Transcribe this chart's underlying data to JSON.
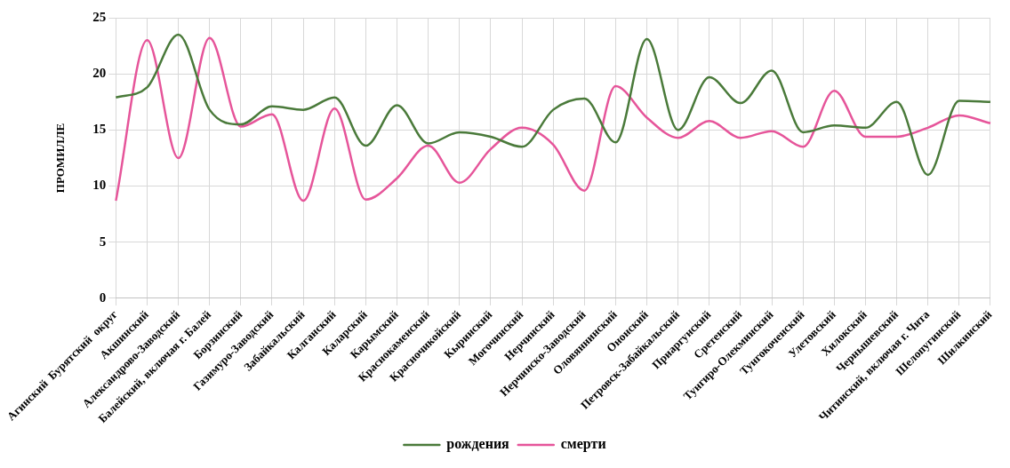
{
  "chart_data": {
    "type": "line",
    "ylabel": "ПРОМИЛЛЕ",
    "categories": [
      "Агинский  Бурятский  округ",
      "Акшинский",
      "Александрово-Заводский",
      "Балейский, включая г. Балей",
      "Борзинский",
      "Газимуро-Заводский",
      "Забайкальский",
      "Калганский",
      "Каларский",
      "Карымский",
      "Краснокаменский",
      "Красночикойский",
      "Кыринский",
      "Могочинский",
      "Нерчинский",
      "Нерчинско-Заводский",
      "Оловяннинский",
      "Ононский",
      "Петровск-Забайкальский",
      "Приаргунский",
      "Сретенский",
      "Тунгиро-Олекминский",
      "Тунгокоченский",
      "Улетовский",
      "Хилокский",
      "Чернышевский",
      "Читинский, включая г. Чита",
      "Шелопугинский",
      "Шилкинский"
    ],
    "series": [
      {
        "name": "рождения",
        "color": "#4a7a3a",
        "values": [
          17.9,
          18.8,
          23.5,
          16.8,
          15.5,
          17.1,
          16.8,
          17.9,
          13.6,
          17.2,
          13.8,
          14.8,
          14.4,
          13.5,
          16.8,
          17.8,
          13.9,
          23.1,
          15.0,
          19.7,
          17.4,
          20.3,
          14.8,
          15.4,
          15.2,
          17.5,
          11.0,
          17.6,
          17.5
        ]
      },
      {
        "name": "смерти",
        "color": "#e6559a",
        "values": [
          8.7,
          23.0,
          12.5,
          23.2,
          15.3,
          16.4,
          8.7,
          16.9,
          8.8,
          10.7,
          13.6,
          10.3,
          13.3,
          15.2,
          13.7,
          9.6,
          18.9,
          16.1,
          14.3,
          15.8,
          14.3,
          14.9,
          13.5,
          18.5,
          14.4,
          14.4,
          15.2,
          16.3,
          15.6
        ]
      }
    ],
    "ylim": [
      0,
      25
    ],
    "yticks": [
      0,
      5,
      10,
      15,
      20,
      25
    ],
    "grid": true,
    "legend": "bottom",
    "marker": "none",
    "line_style": "solid"
  }
}
